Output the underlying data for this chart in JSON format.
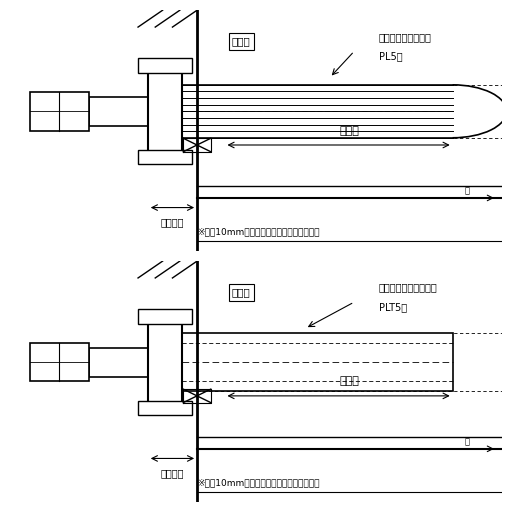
{
  "bg_color": "#ffffff",
  "diagram1": {
    "label_heater": "板フランジヒーター",
    "label_type": "PL5型",
    "label_tank": "タンク",
    "label_nozzle": "ノズル部",
    "label_heat": "発熱部",
    "note": "※部は10mm以上とることをおすすめします"
  },
  "diagram2": {
    "label_heater": "筒型フランジヒーター",
    "label_type": "PLT5型",
    "label_tank": "タンク",
    "label_nozzle": "ノズル部",
    "label_heat": "発熱部",
    "note": "※部は10mm以上とることをおすすめします"
  }
}
